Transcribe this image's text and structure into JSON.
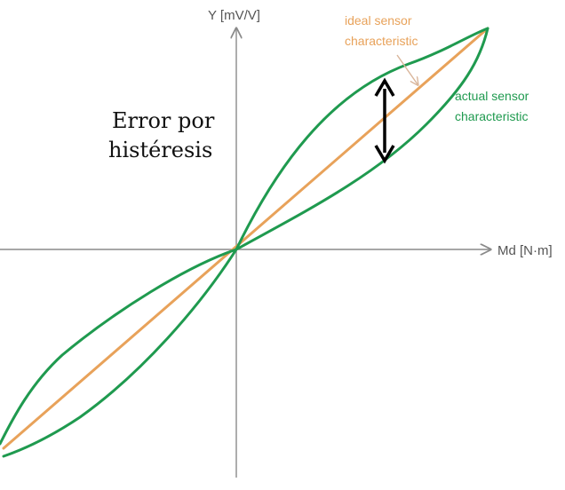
{
  "diagram": {
    "y_axis_label": "Y [mV/V]",
    "x_axis_label": "Md [N·m]",
    "ideal_label_line1": "ideal sensor",
    "ideal_label_line2": "characteristic",
    "actual_label_line1": "actual sensor",
    "actual_label_line2": "characteristic",
    "title_line1": "Error por",
    "title_line2": "histéresis",
    "colors": {
      "ideal": "#e8a25a",
      "actual": "#1f9a4f",
      "axis": "#8a8a8a",
      "arrow": "#000000"
    }
  }
}
